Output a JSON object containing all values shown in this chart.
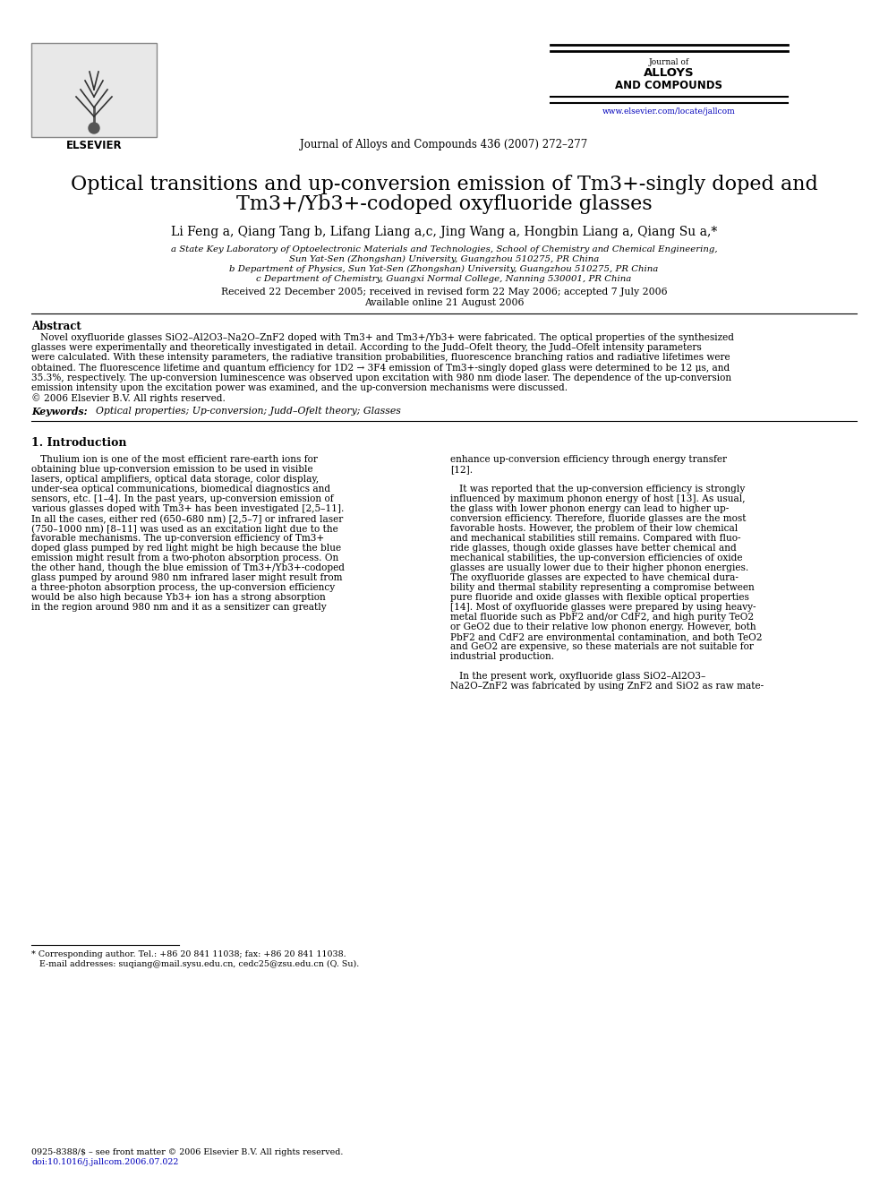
{
  "bg_color": "#ffffff",
  "title_line1": "Optical transitions and up-conversion emission of Tm3+-singly doped and",
  "title_line2": "Tm3+/Yb3+-codoped oxyfluoride glasses",
  "journal_header": "Journal of Alloys and Compounds 436 (2007) 272–277",
  "journal_name_line1": "Journal of",
  "journal_name_line2": "ALLOYS",
  "journal_name_line3": "AND COMPOUNDS",
  "website": "www.elsevier.com/locate/jallcom",
  "authors": "Li Feng a, Qiang Tang b, Lifang Liang a,c, Jing Wang a, Hongbin Liang a, Qiang Su a,*",
  "affil_a": "a State Key Laboratory of Optoelectronic Materials and Technologies, School of Chemistry and Chemical Engineering,",
  "affil_a2": "Sun Yat-Sen (Zhongshan) University, Guangzhou 510275, PR China",
  "affil_b": "b Department of Physics, Sun Yat-Sen (Zhongshan) University, Guangzhou 510275, PR China",
  "affil_c": "c Department of Chemistry, Guangxi Normal College, Nanning 530001, PR China",
  "received": "Received 22 December 2005; received in revised form 22 May 2006; accepted 7 July 2006",
  "available": "Available online 21 August 2006",
  "abstract_title": "Abstract",
  "abstract_line1": "   Novel oxyfluoride glasses SiO2–Al2O3–Na2O–ZnF2 doped with Tm3+ and Tm3+/Yb3+ were fabricated. The optical properties of the synthesized",
  "abstract_line2": "glasses were experimentally and theoretically investigated in detail. According to the Judd–Ofelt theory, the Judd–Ofelt intensity parameters",
  "abstract_line3": "were calculated. With these intensity parameters, the radiative transition probabilities, fluorescence branching ratios and radiative lifetimes were",
  "abstract_line4": "obtained. The fluorescence lifetime and quantum efficiency for 1D2 → 3F4 emission of Tm3+-singly doped glass were determined to be 12 μs, and",
  "abstract_line5": "35.3%, respectively. The up-conversion luminescence was observed upon excitation with 980 nm diode laser. The dependence of the up-conversion",
  "abstract_line6": "emission intensity upon the excitation power was examined, and the up-conversion mechanisms were discussed.",
  "abstract_line7": "© 2006 Elsevier B.V. All rights reserved.",
  "keywords_label": "Keywords:",
  "keywords_text": "  Optical properties; Up-conversion; Judd–Ofelt theory; Glasses",
  "section1_title": "1. Introduction",
  "col1_lines": [
    "   Thulium ion is one of the most efficient rare-earth ions for",
    "obtaining blue up-conversion emission to be used in visible",
    "lasers, optical amplifiers, optical data storage, color display,",
    "under-sea optical communications, biomedical diagnostics and",
    "sensors, etc. [1–4]. In the past years, up-conversion emission of",
    "various glasses doped with Tm3+ has been investigated [2,5–11].",
    "In all the cases, either red (650–680 nm) [2,5–7] or infrared laser",
    "(750–1000 nm) [8–11] was used as an excitation light due to the",
    "favorable mechanisms. The up-conversion efficiency of Tm3+",
    "doped glass pumped by red light might be high because the blue",
    "emission might result from a two-photon absorption process. On",
    "the other hand, though the blue emission of Tm3+/Yb3+-codoped",
    "glass pumped by around 980 nm infrared laser might result from",
    "a three-photon absorption process, the up-conversion efficiency",
    "would be also high because Yb3+ ion has a strong absorption",
    "in the region around 980 nm and it as a sensitizer can greatly"
  ],
  "col2_lines": [
    "enhance up-conversion efficiency through energy transfer",
    "[12].",
    "",
    "   It was reported that the up-conversion efficiency is strongly",
    "influenced by maximum phonon energy of host [13]. As usual,",
    "the glass with lower phonon energy can lead to higher up-",
    "conversion efficiency. Therefore, fluoride glasses are the most",
    "favorable hosts. However, the problem of their low chemical",
    "and mechanical stabilities still remains. Compared with fluo-",
    "ride glasses, though oxide glasses have better chemical and",
    "mechanical stabilities, the up-conversion efficiencies of oxide",
    "glasses are usually lower due to their higher phonon energies.",
    "The oxyfluoride glasses are expected to have chemical dura-",
    "bility and thermal stability representing a compromise between",
    "pure fluoride and oxide glasses with flexible optical properties",
    "[14]. Most of oxyfluoride glasses were prepared by using heavy-",
    "metal fluoride such as PbF2 and/or CdF2, and high purity TeO2",
    "or GeO2 due to their relative low phonon energy. However, both",
    "PbF2 and CdF2 are environmental contamination, and both TeO2",
    "and GeO2 are expensive, so these materials are not suitable for",
    "industrial production.",
    "",
    "   In the present work, oxyfluoride glass SiO2–Al2O3–",
    "Na2O–ZnF2 was fabricated by using ZnF2 and SiO2 as raw mate-"
  ],
  "footnote_star": "* Corresponding author. Tel.: +86 20 841 11038; fax: +86 20 841 11038.",
  "footnote_email": "   E-mail addresses: suqiang@mail.sysu.edu.cn, cedc25@zsu.edu.cn (Q. Su).",
  "footer_issn": "0925-8388/$ – see front matter © 2006 Elsevier B.V. All rights reserved.",
  "footer_doi": "doi:10.1016/j.jallcom.2006.07.022"
}
